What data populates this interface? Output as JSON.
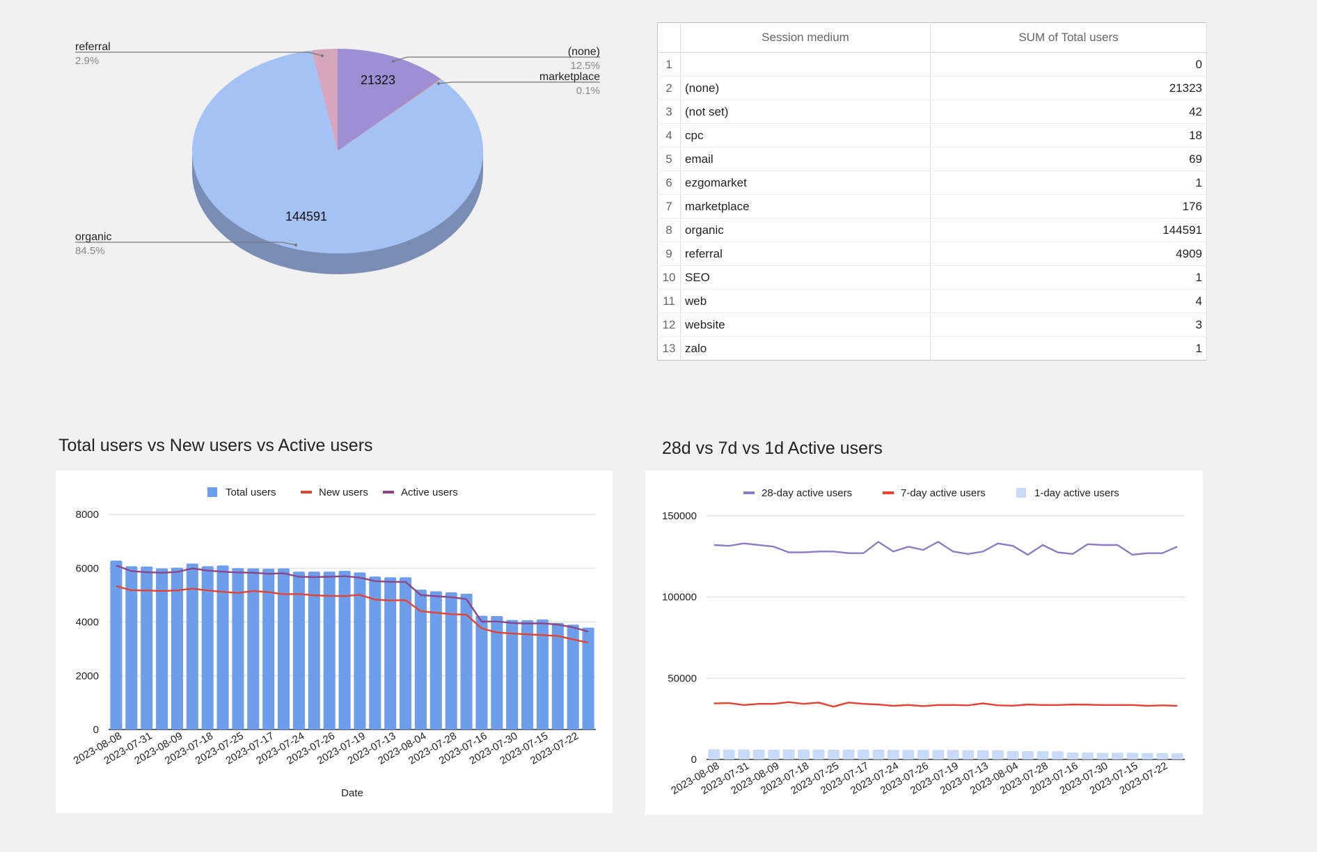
{
  "chart_data": [
    {
      "type": "pie",
      "labels": [
        "(none)",
        "marketplace",
        "organic",
        "referral"
      ],
      "values": [
        21323,
        176,
        144591,
        4909
      ],
      "percent_labels": [
        "12.5%",
        "0.1%",
        "84.5%",
        "2.9%"
      ],
      "slice_value_labels": [
        "21323",
        "",
        "144591",
        ""
      ],
      "colors": [
        "#9c8fd4",
        "#e06f63",
        "#a4c2f4",
        "#d5a6bd"
      ],
      "side_color": "#7a8db5"
    },
    {
      "type": "table",
      "columns": [
        "Session medium",
        "SUM of Total users"
      ],
      "rows": [
        [
          "",
          "0"
        ],
        [
          "(none)",
          "21323"
        ],
        [
          "(not set)",
          "42"
        ],
        [
          "cpc",
          "18"
        ],
        [
          "email",
          "69"
        ],
        [
          "ezgomarket",
          "1"
        ],
        [
          "marketplace",
          "176"
        ],
        [
          "organic",
          "144591"
        ],
        [
          "referral",
          "4909"
        ],
        [
          "SEO",
          "1"
        ],
        [
          "web",
          "4"
        ],
        [
          "website",
          "3"
        ],
        [
          "zalo",
          "1"
        ]
      ],
      "row_numbers": [
        "1",
        "2",
        "3",
        "4",
        "5",
        "6",
        "7",
        "8",
        "9",
        "10",
        "11",
        "12",
        "13"
      ]
    },
    {
      "type": "bar",
      "title": "Total users vs New users vs Active users",
      "xlabel": "Date",
      "ylim": [
        0,
        8000
      ],
      "yticks": [
        "0",
        "2000",
        "4000",
        "6000",
        "8000"
      ],
      "x_tick_labels": [
        "2023-08-08",
        "2023-07-31",
        "2023-08-09",
        "2023-07-18",
        "2023-07-25",
        "2023-07-17",
        "2023-07-24",
        "2023-07-26",
        "2023-07-19",
        "2023-07-13",
        "2023-08-04",
        "2023-07-28",
        "2023-07-16",
        "2023-07-30",
        "2023-07-15",
        "2023-07-22"
      ],
      "series": [
        {
          "name": "Total users",
          "kind": "bar",
          "color": "#6d9eeb",
          "values": [
            6280,
            6070,
            6060,
            5990,
            6020,
            6170,
            6070,
            6100,
            6000,
            5990,
            5980,
            5990,
            5870,
            5870,
            5870,
            5900,
            5840,
            5690,
            5660,
            5660,
            5200,
            5140,
            5100,
            5050,
            4230,
            4220,
            4070,
            4060,
            4090,
            3960,
            3900,
            3790
          ]
        },
        {
          "name": "New users",
          "kind": "line",
          "color": "#e34234",
          "values": [
            5330,
            5180,
            5170,
            5150,
            5170,
            5240,
            5170,
            5120,
            5080,
            5150,
            5110,
            5030,
            5040,
            4990,
            4970,
            4960,
            5010,
            4830,
            4800,
            4810,
            4400,
            4340,
            4290,
            4270,
            3760,
            3610,
            3570,
            3540,
            3510,
            3480,
            3350,
            3230
          ]
        },
        {
          "name": "Active users",
          "kind": "line",
          "color": "#8e4585",
          "values": [
            6100,
            5890,
            5850,
            5830,
            5860,
            5990,
            5910,
            5870,
            5840,
            5830,
            5790,
            5810,
            5680,
            5670,
            5680,
            5700,
            5650,
            5520,
            5490,
            5490,
            5000,
            4960,
            4920,
            4850,
            4010,
            4020,
            3960,
            3940,
            3950,
            3900,
            3800,
            3640
          ]
        }
      ]
    },
    {
      "type": "line",
      "title": "28d vs 7d vs 1d Active users",
      "ylim": [
        0,
        150000
      ],
      "yticks": [
        "0",
        "50000",
        "100000",
        "150000"
      ],
      "x_tick_labels": [
        "2023-08-08",
        "2023-07-31",
        "2023-08-09",
        "2023-07-18",
        "2023-07-25",
        "2023-07-17",
        "2023-07-24",
        "2023-07-26",
        "2023-07-19",
        "2023-07-13",
        "2023-08-04",
        "2023-07-28",
        "2023-07-16",
        "2023-07-30",
        "2023-07-15",
        "2023-07-22"
      ],
      "series": [
        {
          "name": "28-day active users",
          "kind": "line",
          "color": "#8e7cc3",
          "values": [
            132000,
            131500,
            133000,
            132000,
            131000,
            127500,
            127500,
            128000,
            128000,
            127000,
            127000,
            134000,
            128000,
            131000,
            129000,
            134000,
            128000,
            126500,
            128000,
            133000,
            131500,
            126000,
            132000,
            127500,
            126500,
            132500,
            132000,
            132000,
            126000,
            127000,
            127000,
            131000
          ]
        },
        {
          "name": "7-day active users",
          "kind": "line",
          "color": "#e34234",
          "values": [
            34500,
            34700,
            33500,
            34200,
            34200,
            35300,
            34200,
            35000,
            32500,
            35000,
            34200,
            33800,
            33000,
            33500,
            32800,
            33500,
            33500,
            33300,
            34500,
            33300,
            33100,
            33800,
            33500,
            33500,
            33800,
            33700,
            33500,
            33500,
            33500,
            33000,
            33300,
            33000
          ]
        },
        {
          "name": "1-day active users",
          "kind": "bar",
          "color": "#c9daf8",
          "values": [
            6280,
            6070,
            6060,
            5990,
            6020,
            6170,
            6070,
            6100,
            6000,
            5990,
            5980,
            5990,
            5870,
            5870,
            5870,
            5900,
            5840,
            5690,
            5660,
            5660,
            5200,
            5140,
            5100,
            5050,
            4230,
            4220,
            4070,
            4060,
            4090,
            3960,
            3900,
            3790
          ]
        }
      ]
    }
  ]
}
